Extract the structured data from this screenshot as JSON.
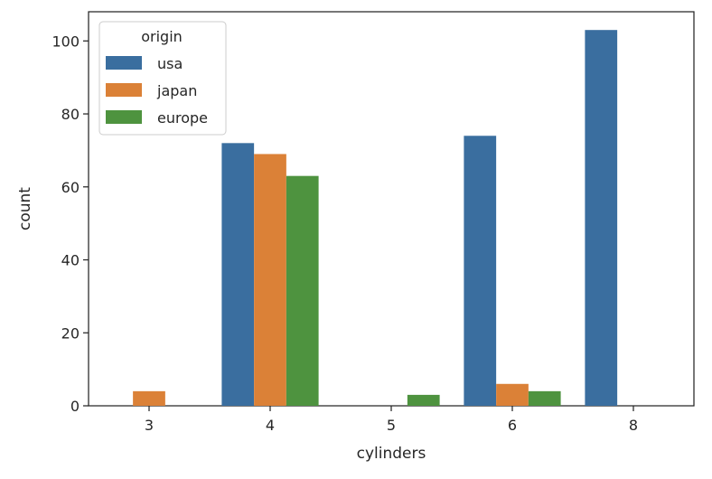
{
  "chart_data": {
    "type": "bar",
    "title": "",
    "xlabel": "cylinders",
    "ylabel": "count",
    "categories": [
      "3",
      "4",
      "5",
      "6",
      "8"
    ],
    "ylim": [
      0,
      108
    ],
    "yticks": [
      0,
      20,
      40,
      60,
      80,
      100
    ],
    "grid": false,
    "legend": {
      "title": "origin",
      "placement": "top-left"
    },
    "series": [
      {
        "name": "usa",
        "color": "#3a6e9f",
        "values": [
          0,
          72,
          0,
          74,
          103
        ]
      },
      {
        "name": "japan",
        "color": "#db8137",
        "values": [
          4,
          69,
          0,
          6,
          0
        ]
      },
      {
        "name": "europe",
        "color": "#4e933f",
        "values": [
          0,
          63,
          3,
          4,
          0
        ]
      }
    ]
  }
}
